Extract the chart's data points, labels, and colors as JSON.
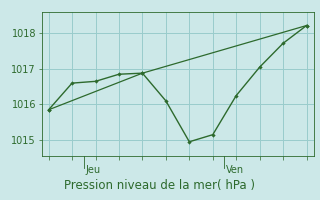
{
  "title": "Pression niveau de la mer( hPa )",
  "bg_color": "#cce8e8",
  "line_color": "#2d6a2d",
  "grid_color": "#99cccc",
  "axis_color": "#2d6a2d",
  "tick_color": "#2d6a2d",
  "line1_x": [
    0,
    1,
    2,
    3,
    4,
    5,
    6,
    7,
    8,
    9,
    10,
    11
  ],
  "line1_y": [
    1015.85,
    1016.6,
    1016.65,
    1016.85,
    1016.88,
    1016.1,
    1014.95,
    1015.15,
    1016.25,
    1017.05,
    1017.72,
    1018.22
  ],
  "line2_x": [
    0,
    4,
    11
  ],
  "line2_y": [
    1015.85,
    1016.88,
    1018.22
  ],
  "ylim": [
    1014.55,
    1018.6
  ],
  "yticks": [
    1015,
    1016,
    1017,
    1018
  ],
  "xlim": [
    -0.3,
    11.3
  ],
  "num_xticks": 12,
  "jeu_tick": 1.5,
  "ven_tick": 7.5,
  "title_fontsize": 8.5,
  "tick_fontsize": 7,
  "day_fontsize": 7
}
